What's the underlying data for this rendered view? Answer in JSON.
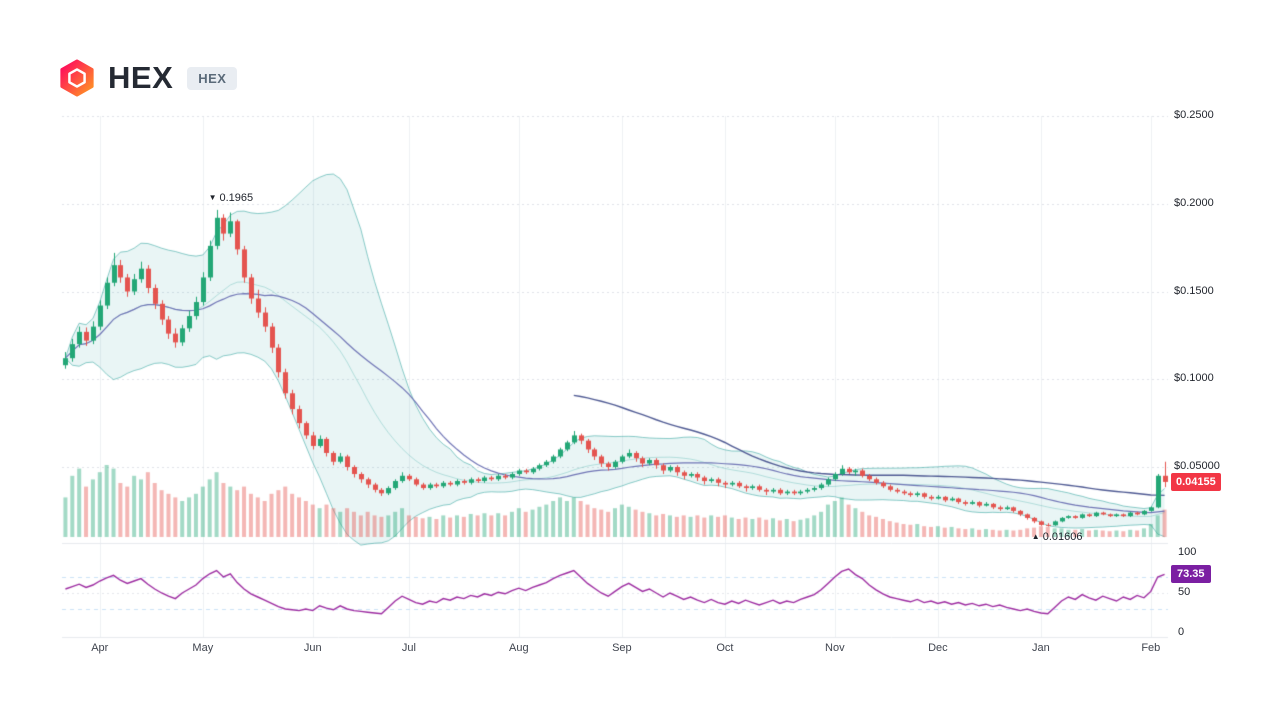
{
  "header": {
    "title": "HEX",
    "symbol_badge": "HEX"
  },
  "chart_data": {
    "type": "candlestick",
    "title": "HEX price chart with Bollinger Bands, moving averages, volume and RSI",
    "x_axis": {
      "labels": [
        "Apr",
        "May",
        "Jun",
        "Jul",
        "Aug",
        "Sep",
        "Oct",
        "Nov",
        "Dec",
        "Jan",
        "Feb"
      ],
      "tick_indices": [
        5,
        20,
        36,
        50,
        66,
        81,
        96,
        112,
        127,
        142,
        158
      ]
    },
    "y_axis": {
      "ticks": [
        {
          "label": "$0.2500",
          "value": 0.25
        },
        {
          "label": "$0.2000",
          "value": 0.2
        },
        {
          "label": "$0.1500",
          "value": 0.15
        },
        {
          "label": "$0.1000",
          "value": 0.1
        },
        {
          "label": "$0.05000",
          "value": 0.05
        }
      ]
    },
    "annotations": {
      "high": {
        "marker": "▼",
        "label": "0.1965",
        "value": 0.1965,
        "index": 22
      },
      "low": {
        "marker": "▲",
        "label": "0.01606",
        "value": 0.01606,
        "index": 143
      }
    },
    "last_price": {
      "label": "0.04155",
      "value": 0.04155
    },
    "indicators": {
      "bollinger": {
        "period": 20,
        "stddev": 2
      },
      "sma_mid": {
        "period": 30
      },
      "sma_long": {
        "period": 75
      }
    },
    "rsi": {
      "current": {
        "label": "73.35",
        "value": 73.35
      },
      "scale_ticks": [
        {
          "label": "100",
          "value": 100
        },
        {
          "label": "50",
          "value": 50
        },
        {
          "label": "0",
          "value": 0
        }
      ],
      "guides": [
        70,
        30
      ],
      "values": [
        55,
        58,
        61,
        57,
        60,
        65,
        69,
        72,
        66,
        62,
        65,
        68,
        61,
        55,
        50,
        46,
        43,
        50,
        55,
        60,
        68,
        74,
        78,
        70,
        74,
        63,
        55,
        49,
        45,
        41,
        37,
        33,
        30,
        29,
        28,
        30,
        28,
        34,
        31,
        29,
        34,
        30,
        28,
        27,
        26,
        25,
        24,
        32,
        40,
        46,
        42,
        38,
        36,
        40,
        38,
        43,
        41,
        45,
        43,
        47,
        45,
        49,
        47,
        51,
        49,
        53,
        56,
        53,
        57,
        60,
        63,
        68,
        72,
        75,
        78,
        70,
        62,
        56,
        50,
        46,
        52,
        58,
        62,
        57,
        52,
        55,
        50,
        45,
        50,
        46,
        42,
        45,
        41,
        38,
        42,
        38,
        36,
        40,
        37,
        41,
        38,
        35,
        38,
        41,
        37,
        40,
        38,
        42,
        45,
        48,
        54,
        62,
        70,
        77,
        80,
        73,
        68,
        60,
        54,
        49,
        45,
        43,
        41,
        39,
        42,
        38,
        40,
        37,
        39,
        36,
        38,
        35,
        37,
        34,
        36,
        33,
        35,
        32,
        30,
        28,
        30,
        27,
        25,
        24,
        32,
        40,
        45,
        42,
        48,
        44,
        41,
        46,
        43,
        40,
        45,
        42,
        47,
        44,
        52,
        70,
        73.35
      ]
    },
    "volume": [
      0.55,
      0.85,
      0.95,
      0.7,
      0.8,
      0.9,
      1.0,
      0.95,
      0.75,
      0.7,
      0.85,
      0.8,
      0.9,
      0.75,
      0.65,
      0.6,
      0.55,
      0.5,
      0.55,
      0.6,
      0.7,
      0.8,
      0.9,
      0.75,
      0.7,
      0.65,
      0.7,
      0.6,
      0.55,
      0.5,
      0.6,
      0.65,
      0.7,
      0.6,
      0.55,
      0.5,
      0.45,
      0.4,
      0.45,
      0.4,
      0.35,
      0.4,
      0.35,
      0.3,
      0.35,
      0.3,
      0.28,
      0.3,
      0.35,
      0.4,
      0.3,
      0.28,
      0.26,
      0.28,
      0.25,
      0.3,
      0.27,
      0.3,
      0.28,
      0.32,
      0.3,
      0.33,
      0.3,
      0.33,
      0.3,
      0.35,
      0.4,
      0.35,
      0.38,
      0.42,
      0.45,
      0.5,
      0.55,
      0.5,
      0.55,
      0.5,
      0.45,
      0.4,
      0.38,
      0.35,
      0.4,
      0.45,
      0.42,
      0.38,
      0.35,
      0.33,
      0.3,
      0.32,
      0.3,
      0.28,
      0.3,
      0.28,
      0.3,
      0.27,
      0.3,
      0.28,
      0.3,
      0.27,
      0.25,
      0.27,
      0.25,
      0.27,
      0.24,
      0.26,
      0.23,
      0.25,
      0.22,
      0.24,
      0.26,
      0.3,
      0.35,
      0.45,
      0.5,
      0.55,
      0.45,
      0.4,
      0.35,
      0.3,
      0.28,
      0.25,
      0.22,
      0.2,
      0.18,
      0.17,
      0.18,
      0.15,
      0.14,
      0.15,
      0.13,
      0.14,
      0.12,
      0.11,
      0.12,
      0.1,
      0.11,
      0.1,
      0.09,
      0.1,
      0.09,
      0.1,
      0.12,
      0.13,
      0.15,
      0.14,
      0.12,
      0.12,
      0.1,
      0.1,
      0.11,
      0.09,
      0.1,
      0.09,
      0.08,
      0.09,
      0.08,
      0.1,
      0.09,
      0.12,
      0.18,
      0.3,
      0.38
    ],
    "candles": [
      [
        0.108,
        0.1155,
        0.106,
        0.112
      ],
      [
        0.112,
        0.123,
        0.11,
        0.12
      ],
      [
        0.12,
        0.13,
        0.118,
        0.127
      ],
      [
        0.127,
        0.1295,
        0.119,
        0.122
      ],
      [
        0.122,
        0.133,
        0.12,
        0.13
      ],
      [
        0.13,
        0.145,
        0.128,
        0.142
      ],
      [
        0.142,
        0.158,
        0.14,
        0.155
      ],
      [
        0.155,
        0.172,
        0.153,
        0.165
      ],
      [
        0.165,
        0.168,
        0.155,
        0.158
      ],
      [
        0.158,
        0.16,
        0.147,
        0.15
      ],
      [
        0.15,
        0.16,
        0.148,
        0.157
      ],
      [
        0.157,
        0.167,
        0.155,
        0.163
      ],
      [
        0.163,
        0.165,
        0.149,
        0.152
      ],
      [
        0.152,
        0.154,
        0.14,
        0.143
      ],
      [
        0.143,
        0.145,
        0.131,
        0.134
      ],
      [
        0.134,
        0.136,
        0.123,
        0.126
      ],
      [
        0.126,
        0.129,
        0.118,
        0.121
      ],
      [
        0.121,
        0.131,
        0.119,
        0.129
      ],
      [
        0.129,
        0.139,
        0.127,
        0.136
      ],
      [
        0.136,
        0.147,
        0.134,
        0.144
      ],
      [
        0.144,
        0.161,
        0.142,
        0.158
      ],
      [
        0.158,
        0.179,
        0.156,
        0.176
      ],
      [
        0.176,
        0.1965,
        0.174,
        0.192
      ],
      [
        0.192,
        0.194,
        0.179,
        0.183
      ],
      [
        0.183,
        0.195,
        0.181,
        0.19
      ],
      [
        0.19,
        0.191,
        0.171,
        0.174
      ],
      [
        0.174,
        0.176,
        0.155,
        0.158
      ],
      [
        0.158,
        0.16,
        0.143,
        0.146
      ],
      [
        0.146,
        0.151,
        0.135,
        0.138
      ],
      [
        0.138,
        0.141,
        0.127,
        0.13
      ],
      [
        0.13,
        0.132,
        0.115,
        0.118
      ],
      [
        0.118,
        0.12,
        0.101,
        0.104
      ],
      [
        0.104,
        0.106,
        0.089,
        0.092
      ],
      [
        0.092,
        0.094,
        0.08,
        0.083
      ],
      [
        0.083,
        0.085,
        0.072,
        0.075
      ],
      [
        0.075,
        0.076,
        0.066,
        0.068
      ],
      [
        0.068,
        0.07,
        0.06,
        0.062
      ],
      [
        0.062,
        0.068,
        0.061,
        0.066
      ],
      [
        0.066,
        0.067,
        0.056,
        0.058
      ],
      [
        0.058,
        0.059,
        0.051,
        0.053
      ],
      [
        0.053,
        0.058,
        0.052,
        0.056
      ],
      [
        0.056,
        0.057,
        0.048,
        0.05
      ],
      [
        0.05,
        0.051,
        0.044,
        0.046
      ],
      [
        0.046,
        0.047,
        0.041,
        0.043
      ],
      [
        0.043,
        0.044,
        0.038,
        0.04
      ],
      [
        0.04,
        0.041,
        0.0355,
        0.037
      ],
      [
        0.037,
        0.038,
        0.0335,
        0.035
      ],
      [
        0.035,
        0.039,
        0.034,
        0.038
      ],
      [
        0.038,
        0.043,
        0.037,
        0.042
      ],
      [
        0.042,
        0.047,
        0.041,
        0.045
      ],
      [
        0.045,
        0.046,
        0.042,
        0.043
      ],
      [
        0.043,
        0.044,
        0.039,
        0.04
      ],
      [
        0.04,
        0.041,
        0.037,
        0.038
      ],
      [
        0.038,
        0.041,
        0.037,
        0.04
      ],
      [
        0.04,
        0.041,
        0.038,
        0.039
      ],
      [
        0.039,
        0.042,
        0.038,
        0.041
      ],
      [
        0.041,
        0.042,
        0.039,
        0.04
      ],
      [
        0.04,
        0.043,
        0.039,
        0.042
      ],
      [
        0.042,
        0.043,
        0.04,
        0.041
      ],
      [
        0.041,
        0.044,
        0.04,
        0.043
      ],
      [
        0.043,
        0.044,
        0.041,
        0.042
      ],
      [
        0.042,
        0.045,
        0.041,
        0.044
      ],
      [
        0.044,
        0.045,
        0.042,
        0.043
      ],
      [
        0.043,
        0.046,
        0.042,
        0.045
      ],
      [
        0.045,
        0.046,
        0.043,
        0.044
      ],
      [
        0.044,
        0.047,
        0.043,
        0.046
      ],
      [
        0.046,
        0.049,
        0.045,
        0.048
      ],
      [
        0.048,
        0.049,
        0.046,
        0.047
      ],
      [
        0.047,
        0.05,
        0.046,
        0.049
      ],
      [
        0.049,
        0.052,
        0.048,
        0.051
      ],
      [
        0.051,
        0.054,
        0.05,
        0.053
      ],
      [
        0.053,
        0.057,
        0.052,
        0.056
      ],
      [
        0.056,
        0.061,
        0.055,
        0.06
      ],
      [
        0.06,
        0.065,
        0.059,
        0.064
      ],
      [
        0.064,
        0.0705,
        0.063,
        0.068
      ],
      [
        0.068,
        0.069,
        0.063,
        0.065
      ],
      [
        0.065,
        0.066,
        0.058,
        0.06
      ],
      [
        0.06,
        0.061,
        0.054,
        0.056
      ],
      [
        0.056,
        0.057,
        0.05,
        0.052
      ],
      [
        0.052,
        0.053,
        0.048,
        0.05
      ],
      [
        0.05,
        0.054,
        0.049,
        0.053
      ],
      [
        0.053,
        0.057,
        0.052,
        0.056
      ],
      [
        0.056,
        0.06,
        0.055,
        0.058
      ],
      [
        0.058,
        0.059,
        0.053,
        0.055
      ],
      [
        0.055,
        0.056,
        0.05,
        0.052
      ],
      [
        0.052,
        0.055,
        0.051,
        0.054
      ],
      [
        0.054,
        0.055,
        0.049,
        0.051
      ],
      [
        0.051,
        0.052,
        0.046,
        0.048
      ],
      [
        0.048,
        0.051,
        0.047,
        0.05
      ],
      [
        0.05,
        0.051,
        0.045,
        0.047
      ],
      [
        0.047,
        0.048,
        0.043,
        0.045
      ],
      [
        0.045,
        0.047,
        0.044,
        0.046
      ],
      [
        0.046,
        0.047,
        0.042,
        0.044
      ],
      [
        0.044,
        0.045,
        0.04,
        0.042
      ],
      [
        0.042,
        0.044,
        0.041,
        0.043
      ],
      [
        0.043,
        0.044,
        0.039,
        0.041
      ],
      [
        0.041,
        0.042,
        0.038,
        0.04
      ],
      [
        0.04,
        0.042,
        0.039,
        0.041
      ],
      [
        0.041,
        0.042,
        0.038,
        0.039
      ],
      [
        0.039,
        0.04,
        0.036,
        0.038
      ],
      [
        0.038,
        0.04,
        0.037,
        0.039
      ],
      [
        0.039,
        0.04,
        0.036,
        0.037
      ],
      [
        0.037,
        0.038,
        0.034,
        0.036
      ],
      [
        0.036,
        0.038,
        0.035,
        0.037
      ],
      [
        0.037,
        0.038,
        0.034,
        0.035
      ],
      [
        0.035,
        0.037,
        0.034,
        0.036
      ],
      [
        0.036,
        0.037,
        0.034,
        0.035
      ],
      [
        0.035,
        0.037,
        0.034,
        0.036
      ],
      [
        0.036,
        0.038,
        0.035,
        0.037
      ],
      [
        0.037,
        0.039,
        0.036,
        0.038
      ],
      [
        0.038,
        0.041,
        0.037,
        0.04
      ],
      [
        0.04,
        0.044,
        0.039,
        0.043
      ],
      [
        0.043,
        0.047,
        0.042,
        0.046
      ],
      [
        0.046,
        0.051,
        0.045,
        0.049
      ],
      [
        0.049,
        0.05,
        0.046,
        0.047
      ],
      [
        0.047,
        0.049,
        0.045,
        0.048
      ],
      [
        0.048,
        0.049,
        0.044,
        0.045
      ],
      [
        0.045,
        0.046,
        0.042,
        0.043
      ],
      [
        0.043,
        0.044,
        0.04,
        0.041
      ],
      [
        0.041,
        0.042,
        0.038,
        0.039
      ],
      [
        0.039,
        0.04,
        0.036,
        0.037
      ],
      [
        0.037,
        0.038,
        0.035,
        0.036
      ],
      [
        0.036,
        0.037,
        0.034,
        0.035
      ],
      [
        0.035,
        0.036,
        0.033,
        0.034
      ],
      [
        0.034,
        0.036,
        0.033,
        0.035
      ],
      [
        0.035,
        0.0355,
        0.032,
        0.033
      ],
      [
        0.033,
        0.034,
        0.031,
        0.032
      ],
      [
        0.032,
        0.034,
        0.0315,
        0.033
      ],
      [
        0.033,
        0.0335,
        0.03,
        0.031
      ],
      [
        0.031,
        0.033,
        0.0305,
        0.032
      ],
      [
        0.032,
        0.0325,
        0.029,
        0.03
      ],
      [
        0.03,
        0.031,
        0.028,
        0.029
      ],
      [
        0.029,
        0.031,
        0.0285,
        0.03
      ],
      [
        0.03,
        0.0305,
        0.027,
        0.028
      ],
      [
        0.028,
        0.03,
        0.0275,
        0.029
      ],
      [
        0.029,
        0.0295,
        0.026,
        0.027
      ],
      [
        0.027,
        0.028,
        0.025,
        0.026
      ],
      [
        0.026,
        0.028,
        0.0255,
        0.027
      ],
      [
        0.027,
        0.0275,
        0.024,
        0.025
      ],
      [
        0.025,
        0.0255,
        0.022,
        0.023
      ],
      [
        0.023,
        0.0235,
        0.02,
        0.021
      ],
      [
        0.021,
        0.0215,
        0.018,
        0.019
      ],
      [
        0.019,
        0.0195,
        0.0165,
        0.017
      ],
      [
        0.017,
        0.018,
        0.01606,
        0.0168
      ],
      [
        0.0168,
        0.0195,
        0.0165,
        0.019
      ],
      [
        0.019,
        0.0215,
        0.0185,
        0.021
      ],
      [
        0.021,
        0.0225,
        0.0205,
        0.022
      ],
      [
        0.022,
        0.0225,
        0.0205,
        0.021
      ],
      [
        0.021,
        0.0235,
        0.0205,
        0.023
      ],
      [
        0.023,
        0.0235,
        0.0215,
        0.022
      ],
      [
        0.022,
        0.0245,
        0.0215,
        0.024
      ],
      [
        0.024,
        0.0245,
        0.0225,
        0.023
      ],
      [
        0.023,
        0.0235,
        0.0215,
        0.022
      ],
      [
        0.022,
        0.0235,
        0.0215,
        0.023
      ],
      [
        0.023,
        0.0235,
        0.0215,
        0.022
      ],
      [
        0.022,
        0.0245,
        0.0215,
        0.024
      ],
      [
        0.024,
        0.0245,
        0.0225,
        0.023
      ],
      [
        0.023,
        0.0255,
        0.0225,
        0.025
      ],
      [
        0.025,
        0.0275,
        0.0245,
        0.027
      ],
      [
        0.027,
        0.046,
        0.0265,
        0.045
      ],
      [
        0.045,
        0.053,
        0.0385,
        0.0415
      ]
    ],
    "colors": {
      "up": "#23a776",
      "down": "#e4544f",
      "band": "#2aa19b",
      "sma_mid": "#6f74b5",
      "sma_long": "#4f5a93",
      "rsi": "#9c2aa0",
      "price_badge_bg": "#f23645",
      "rsi_badge_bg": "#7b1fa2"
    }
  }
}
